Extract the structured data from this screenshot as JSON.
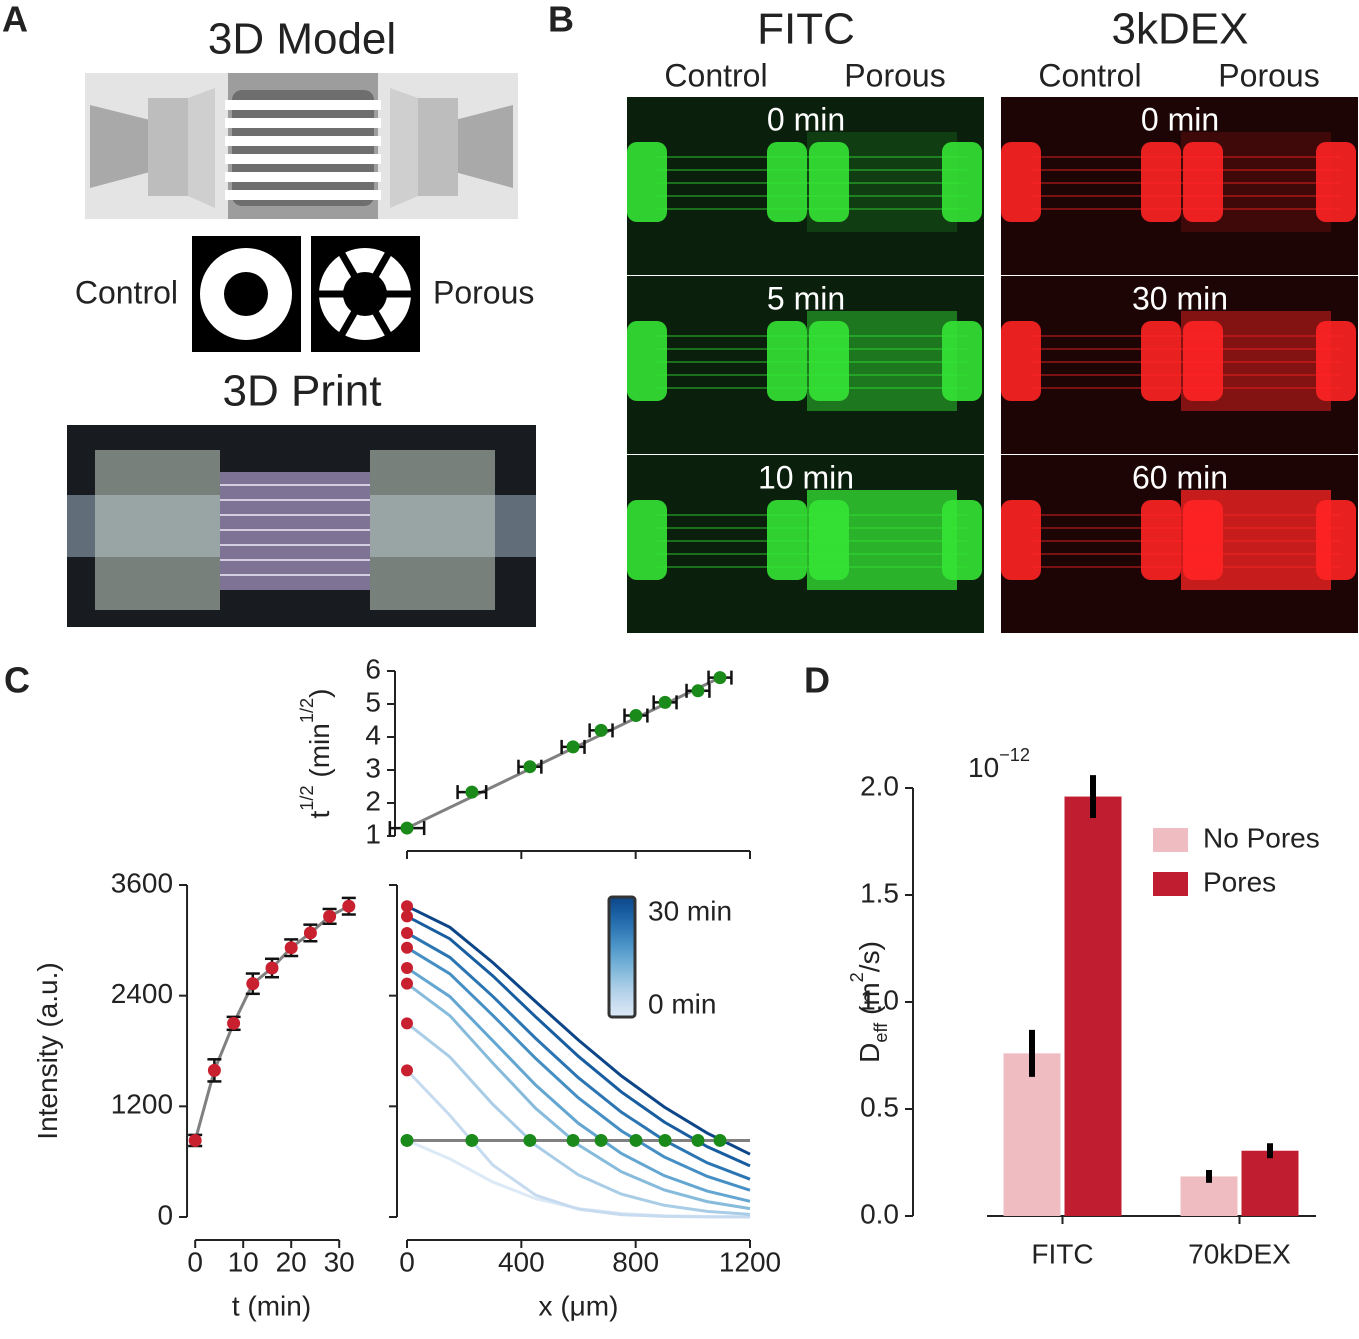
{
  "panel_labels": [
    "A",
    "B",
    "C",
    "D"
  ],
  "panel_a": {
    "model_title": "3D Model",
    "control": "Control",
    "porous": "Porous",
    "print_title": "3D Print"
  },
  "panel_b": {
    "groups": [
      {
        "name": "FITC",
        "color": "#0f9a3e",
        "columns": [
          "Control",
          "Porous"
        ],
        "times": [
          "0 min",
          "5 min",
          "10 min"
        ]
      },
      {
        "name": "3kDEX",
        "color": "#c8202f",
        "columns": [
          "Control",
          "Porous"
        ],
        "times": [
          "0 min",
          "30 min",
          "60 min"
        ]
      }
    ]
  },
  "chart_data": [
    {
      "type": "scatter",
      "x": [
        0,
        227,
        430,
        581,
        679,
        801,
        903,
        1018,
        1095
      ],
      "x_errors": [
        60,
        50,
        40,
        40,
        40,
        40,
        40,
        40,
        40
      ],
      "series": [
        {
          "color": "#1a8a1a",
          "values": [
            1.24,
            2.33,
            3.1,
            3.7,
            4.2,
            4.65,
            5.05,
            5.4,
            5.8
          ]
        }
      ],
      "fit": {
        "color": "#808080",
        "x": [
          0,
          1095
        ],
        "y": [
          1.24,
          5.8
        ]
      },
      "xlim": [
        0,
        1200
      ],
      "xticks": [
        0,
        400,
        800,
        1200
      ],
      "xtick_labels": false,
      "ylim": [
        1,
        6
      ],
      "yticks": [
        1,
        2,
        3,
        4,
        5,
        6
      ],
      "y_label": [
        {
          "text": "t"
        },
        {
          "text": "1/2",
          "sup": true
        },
        {
          "text": " (min"
        },
        {
          "text": "1/2",
          "sup": true
        },
        {
          "text": ")"
        }
      ]
    },
    {
      "type": "line",
      "x": [
        0,
        4,
        8,
        12,
        16,
        20,
        24,
        28,
        32
      ],
      "series": [
        {
          "color": "#808080",
          "marker_color": "#c8202f",
          "values": [
            830,
            1590,
            2100,
            2530,
            2700,
            2920,
            3080,
            3260,
            3370
          ],
          "errors": [
            60,
            120,
            70,
            110,
            100,
            90,
            90,
            80,
            90
          ]
        }
      ],
      "xlim": [
        -1.7,
        33.5
      ],
      "xticks": [
        0,
        10,
        20,
        30
      ],
      "ylim": [
        0,
        3600
      ],
      "yticks": [
        0,
        1200,
        2400,
        3600
      ],
      "x_label": "t (min)",
      "y_label": [
        {
          "text": "Intensity (a.u.)"
        }
      ]
    },
    {
      "type": "line",
      "x": [
        0,
        150,
        300,
        450,
        600,
        750,
        900,
        1050,
        1200
      ],
      "series": [
        {
          "color": "#dce9f6",
          "values": [
            830,
            630,
            380,
            198,
            91,
            38,
            14,
            5,
            2
          ]
        },
        {
          "color": "#c6dbef",
          "values": [
            1590,
            1102,
            564,
            237,
            85,
            26,
            7,
            2,
            0
          ]
        },
        {
          "color": "#a9cde6",
          "values": [
            2100,
            1735,
            1222,
            777,
            456,
            248,
            127,
            61,
            28
          ]
        },
        {
          "color": "#86bbdc",
          "values": [
            2530,
            2183,
            1670,
            1179,
            782,
            491,
            293,
            167,
            91
          ]
        },
        {
          "color": "#64a6d2",
          "values": [
            2700,
            2390,
            1912,
            1431,
            1015,
            689,
            448,
            281,
            170
          ]
        },
        {
          "color": "#458fc4",
          "values": [
            2920,
            2637,
            2187,
            1720,
            1291,
            934,
            651,
            441,
            290
          ]
        },
        {
          "color": "#2c75b3",
          "values": [
            3080,
            2815,
            2393,
            1937,
            1509,
            1137,
            832,
            588,
            410
          ]
        },
        {
          "color": "#185da0",
          "values": [
            3260,
            3016,
            2615,
            2171,
            1741,
            1356,
            1030,
            763,
            554
          ]
        },
        {
          "color": "#0d4688",
          "values": [
            3370,
            3141,
            2760,
            2335,
            1918,
            1530,
            1193,
            910,
            681
          ]
        }
      ],
      "threshold": 830,
      "threshold_color": "#808080",
      "colorbar_labels": [
        "30 min",
        "0 min"
      ],
      "xlim": [
        0,
        1200
      ],
      "xticks": [
        0,
        400,
        800,
        1200
      ],
      "ylim": [
        0,
        3600
      ],
      "yticks": [
        0,
        1200,
        2400,
        3600
      ],
      "ytick_labels": false,
      "x_label": "x (μm)"
    },
    {
      "type": "bar",
      "categories": [
        "FITC",
        "70kDEX"
      ],
      "series": [
        {
          "name": "No Pores",
          "color": "#efbcc1",
          "values": [
            0.76,
            0.185
          ],
          "errors": [
            0.11,
            0.03
          ]
        },
        {
          "name": "Pores",
          "color": "#c01e30",
          "values": [
            1.96,
            0.305
          ],
          "errors": [
            0.1,
            0.035
          ]
        }
      ],
      "ylim": [
        0,
        2.0
      ],
      "yticks": [
        {
          "value": 0,
          "label": "0.0"
        },
        0.5,
        {
          "value": 1,
          "label": "1.0"
        },
        1.5,
        {
          "value": 2,
          "label": "2.0"
        }
      ],
      "y_multiplier": [
        {
          "text": "10"
        },
        {
          "text": "−12",
          "sup": true
        }
      ],
      "y_label": [
        {
          "text": "D"
        },
        {
          "text": "eff",
          "sub": true
        },
        {
          "text": " (m"
        },
        {
          "text": "2",
          "sup": true
        },
        {
          "text": "/s)"
        }
      ],
      "legend": "upper right"
    }
  ]
}
